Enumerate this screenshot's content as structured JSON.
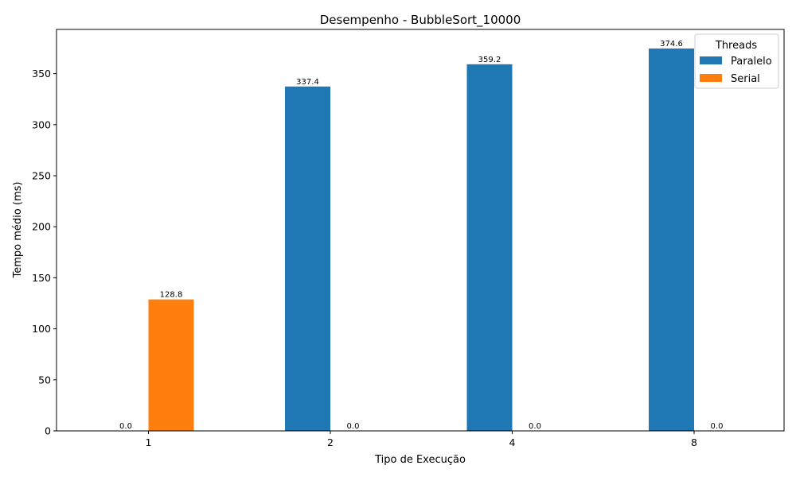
{
  "chart_data": {
    "type": "bar",
    "title": "Desempenho - BubbleSort_10000",
    "xlabel": "Tipo de Execução",
    "ylabel": "Tempo médio (ms)",
    "categories": [
      "1",
      "2",
      "4",
      "8"
    ],
    "series": [
      {
        "name": "Paralelo",
        "color": "#1f77b4",
        "values": [
          0.0,
          337.4,
          359.2,
          374.6
        ],
        "labels": [
          "0.0",
          "337.4",
          "359.2",
          "374.6"
        ]
      },
      {
        "name": "Serial",
        "color": "#ff7f0e",
        "values": [
          128.8,
          0.0,
          0.0,
          0.0
        ],
        "labels": [
          "128.8",
          "0.0",
          "0.0",
          "0.0"
        ]
      }
    ],
    "ylim": [
      0,
      393.33
    ],
    "yticks": [
      0,
      50,
      100,
      150,
      200,
      250,
      300,
      350
    ],
    "grid": false,
    "legend": {
      "title": "Threads",
      "placement": "top-right"
    }
  }
}
